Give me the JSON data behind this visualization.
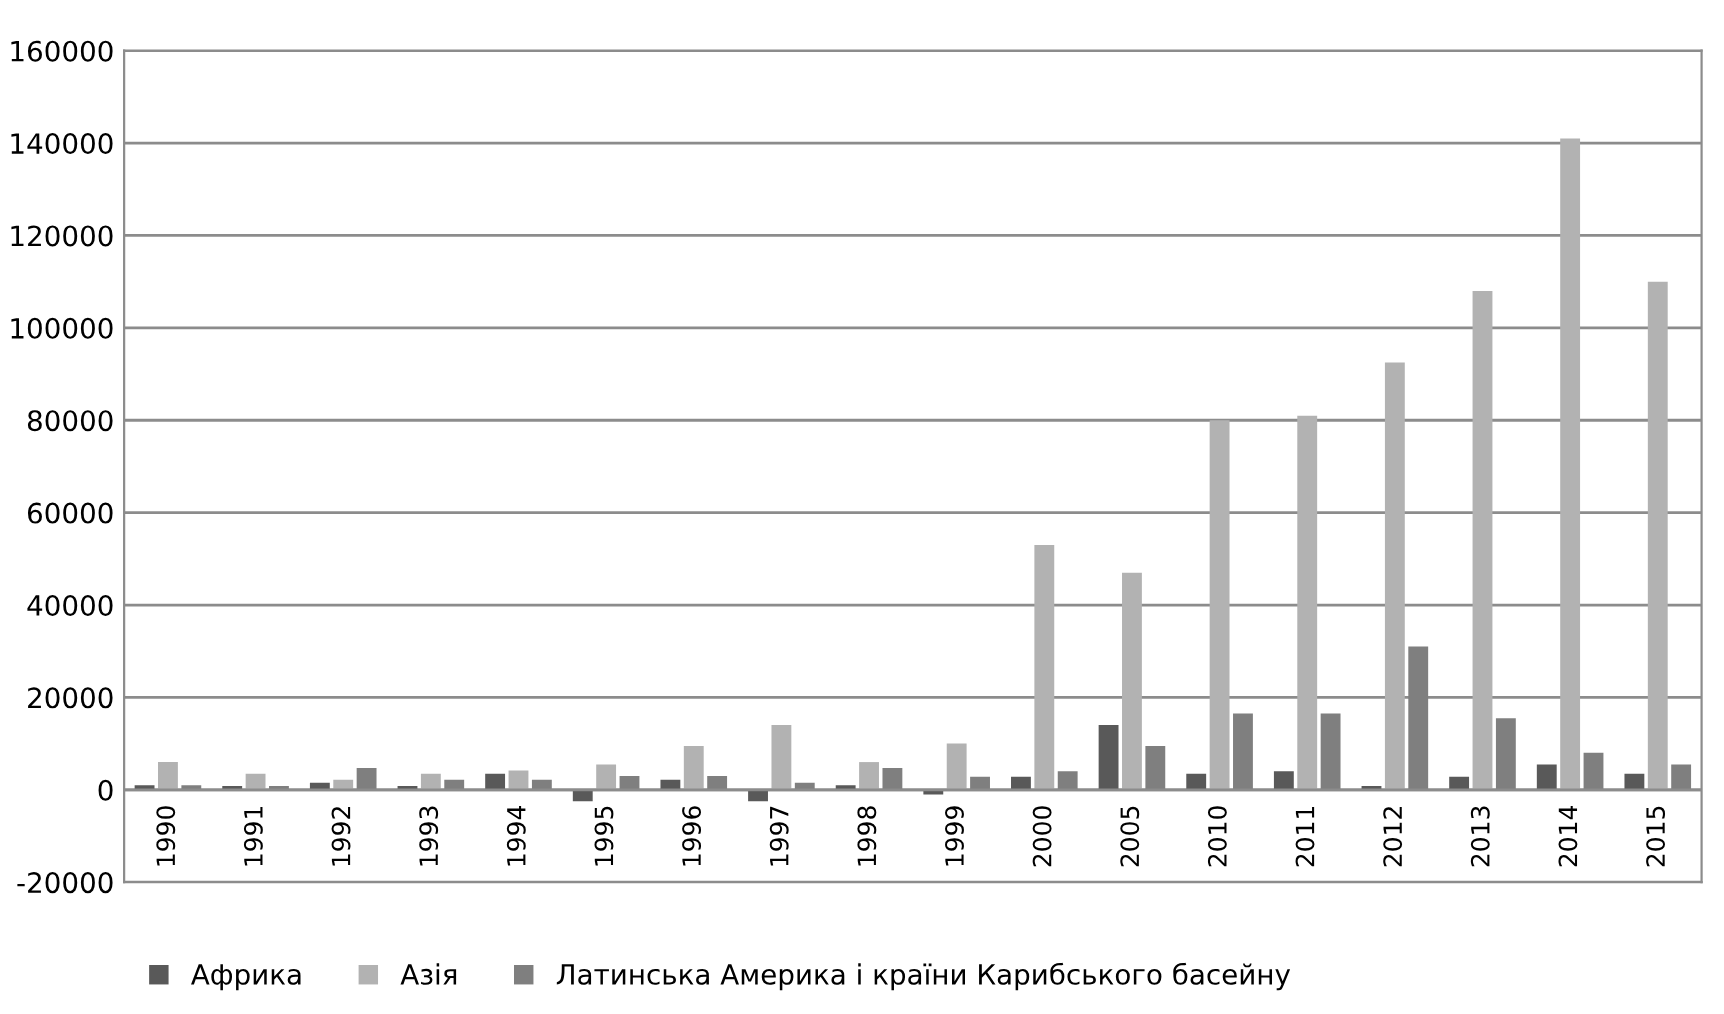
{
  "chart_data": {
    "type": "bar",
    "categories": [
      "1990",
      "1991",
      "1992",
      "1993",
      "1994",
      "1995",
      "1996",
      "1997",
      "1998",
      "1999",
      "2000",
      "2005",
      "2010",
      "2011",
      "2012",
      "2013",
      "2014",
      "2015"
    ],
    "series": [
      {
        "name": "Африка",
        "color": "#595959",
        "values": [
          1000,
          800,
          1500,
          800,
          3500,
          -2500,
          2200,
          -2500,
          1000,
          -1000,
          2800,
          14000,
          3500,
          4000,
          800,
          2800,
          5500,
          3500
        ]
      },
      {
        "name": "Азія",
        "color": "#b2b2b2",
        "values": [
          6000,
          3500,
          2200,
          3500,
          4200,
          5500,
          9500,
          14000,
          6000,
          10000,
          53000,
          47000,
          80000,
          81000,
          92500,
          108000,
          141000,
          110000
        ]
      },
      {
        "name": "Латинська Америка і країни Карибського басейну",
        "color": "#7f7f7f",
        "values": [
          1000,
          800,
          4700,
          2200,
          2200,
          3000,
          3000,
          1500,
          4700,
          2800,
          4000,
          9500,
          16500,
          16500,
          31000,
          15500,
          8000,
          5500
        ]
      }
    ],
    "ylim": [
      -20000,
      160000
    ],
    "yticks": [
      -20000,
      0,
      20000,
      40000,
      60000,
      80000,
      100000,
      120000,
      140000,
      160000
    ],
    "grid": "y",
    "legend": "bottom"
  }
}
